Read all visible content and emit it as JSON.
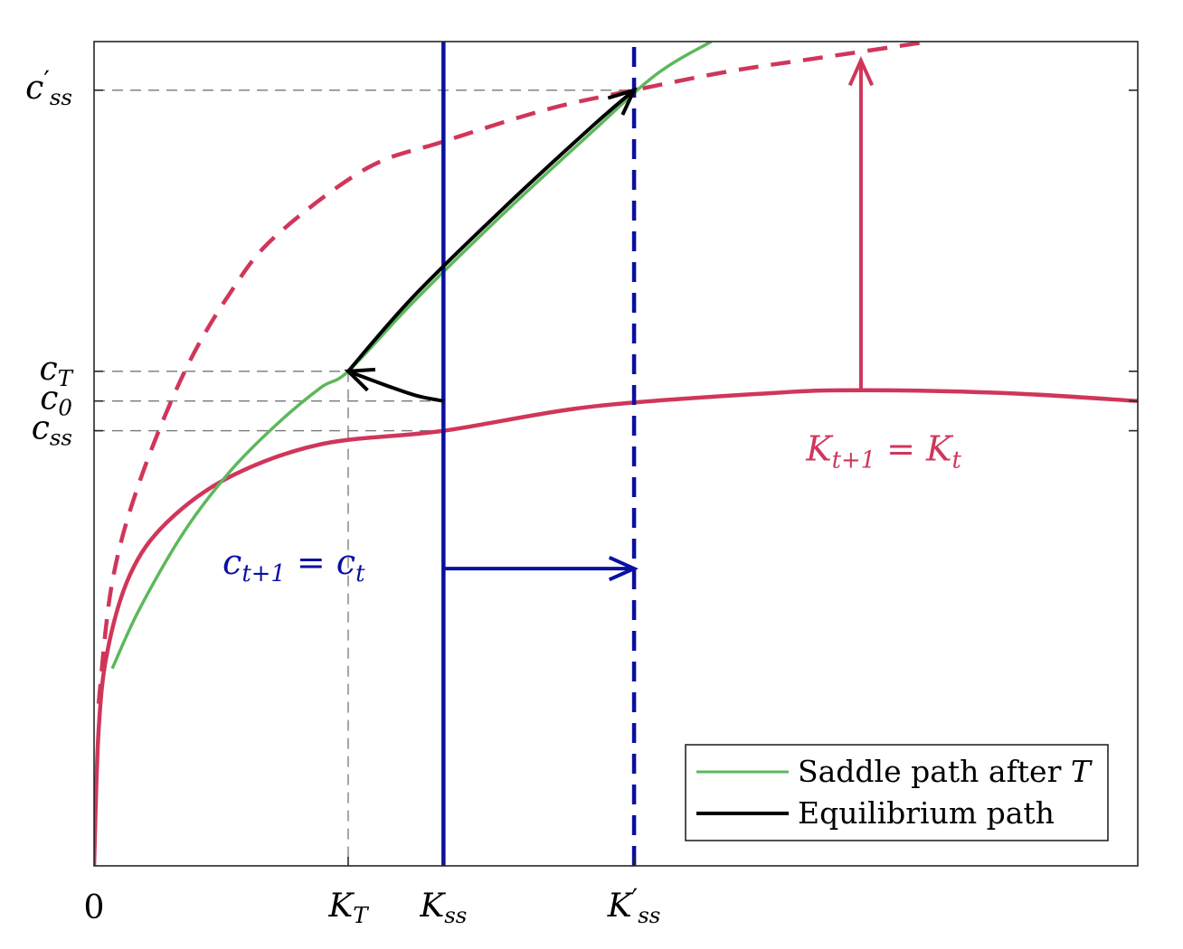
{
  "chart_data": {
    "type": "line",
    "title": "",
    "xlabel": "",
    "ylabel": "",
    "xlim": [
      0,
      11.5
    ],
    "ylim": [
      0,
      3.05
    ],
    "grid": false,
    "legend_position": "bottom-right",
    "colors": {
      "red": "#d0365a",
      "blue": "#0a10a0",
      "green": "#5cb85c",
      "black": "#000000",
      "guide": "#777777"
    },
    "x_origin_label": "0",
    "x_tick_labels": [
      {
        "x": 2.8,
        "base": "K",
        "sub": "T",
        "prime": ""
      },
      {
        "x": 3.85,
        "base": "K",
        "sub": "ss",
        "prime": ""
      },
      {
        "x": 5.95,
        "base": "K",
        "sub": "ss",
        "prime": "′"
      }
    ],
    "y_tick_labels": [
      {
        "y": 1.83,
        "base": "c",
        "sub": "T",
        "prime": ""
      },
      {
        "y": 1.72,
        "base": "c",
        "sub": "0",
        "prime": ""
      },
      {
        "y": 1.61,
        "base": "c",
        "sub": "ss",
        "prime": ""
      },
      {
        "y": 2.87,
        "base": "c",
        "sub": "ss",
        "prime": "′"
      }
    ],
    "series": [
      {
        "name": "Saddle path after T",
        "role": "saddle_path",
        "style": "solid",
        "color": "#5cb85c",
        "x": [
          0.2,
          0.5,
          1.0,
          1.5,
          2.0,
          2.5,
          2.8,
          3.5,
          4.5,
          5.5,
          6.2,
          6.8
        ],
        "y": [
          0.73,
          0.95,
          1.24,
          1.46,
          1.63,
          1.77,
          1.83,
          2.08,
          2.41,
          2.72,
          2.93,
          3.05
        ]
      },
      {
        "name": "Equilibrium path",
        "role": "equilibrium_path",
        "style": "solid",
        "color": "#000000",
        "x": [
          3.85,
          3.55,
          3.2,
          2.8,
          3.5,
          4.5,
          5.5,
          5.95
        ],
        "y": [
          1.72,
          1.74,
          1.78,
          1.83,
          2.1,
          2.43,
          2.74,
          2.87
        ]
      },
      {
        "label": "K_{t+1} = K_t",
        "role": "k_locus_original",
        "style": "solid",
        "color": "#d0365a",
        "x": [
          0,
          0.05,
          0.15,
          0.4,
          0.8,
          1.5,
          2.5,
          3.85,
          5.5,
          7.5,
          8.45,
          10.0,
          11.5
        ],
        "y": [
          0,
          0.5,
          0.8,
          1.08,
          1.27,
          1.44,
          1.56,
          1.61,
          1.7,
          1.75,
          1.76,
          1.75,
          1.72
        ]
      },
      {
        "role": "k_locus_shifted",
        "style": "dashed",
        "color": "#d0365a",
        "x": [
          0.05,
          0.2,
          0.5,
          1.0,
          1.5,
          2.0,
          3.0,
          3.85,
          5.0,
          5.95,
          7.0,
          8.0,
          9.2
        ],
        "y": [
          0.6,
          1.05,
          1.42,
          1.83,
          2.12,
          2.33,
          2.58,
          2.68,
          2.8,
          2.87,
          2.94,
          2.99,
          3.05
        ]
      },
      {
        "label": "c_{t+1} = c_t",
        "role": "c_locus_original",
        "style": "solid",
        "color": "#0a10a0",
        "x": [
          3.85,
          3.85
        ],
        "y": [
          0,
          3.05
        ]
      },
      {
        "role": "c_locus_shifted",
        "style": "dashed",
        "color": "#0a10a0",
        "x": [
          5.95,
          5.95
        ],
        "y": [
          0,
          3.05
        ]
      }
    ],
    "annotations": [
      {
        "label_base": "K",
        "label_sub": "t+1",
        "label_rest": " = K",
        "label_sub2": "t",
        "color": "#d0365a",
        "x": 8.7,
        "y": 1.52
      },
      {
        "label_base": "c",
        "label_sub": "t+1",
        "label_rest": " = c",
        "label_sub2": "t",
        "color": "#0a10a0",
        "x": 2.2,
        "y": 1.1
      }
    ],
    "shift_arrows": [
      {
        "color": "#d0365a",
        "from": [
          8.45,
          1.76
        ],
        "to": [
          8.45,
          2.98
        ]
      },
      {
        "color": "#0a10a0",
        "from": [
          3.85,
          1.1
        ],
        "to": [
          5.95,
          1.1
        ]
      }
    ]
  }
}
